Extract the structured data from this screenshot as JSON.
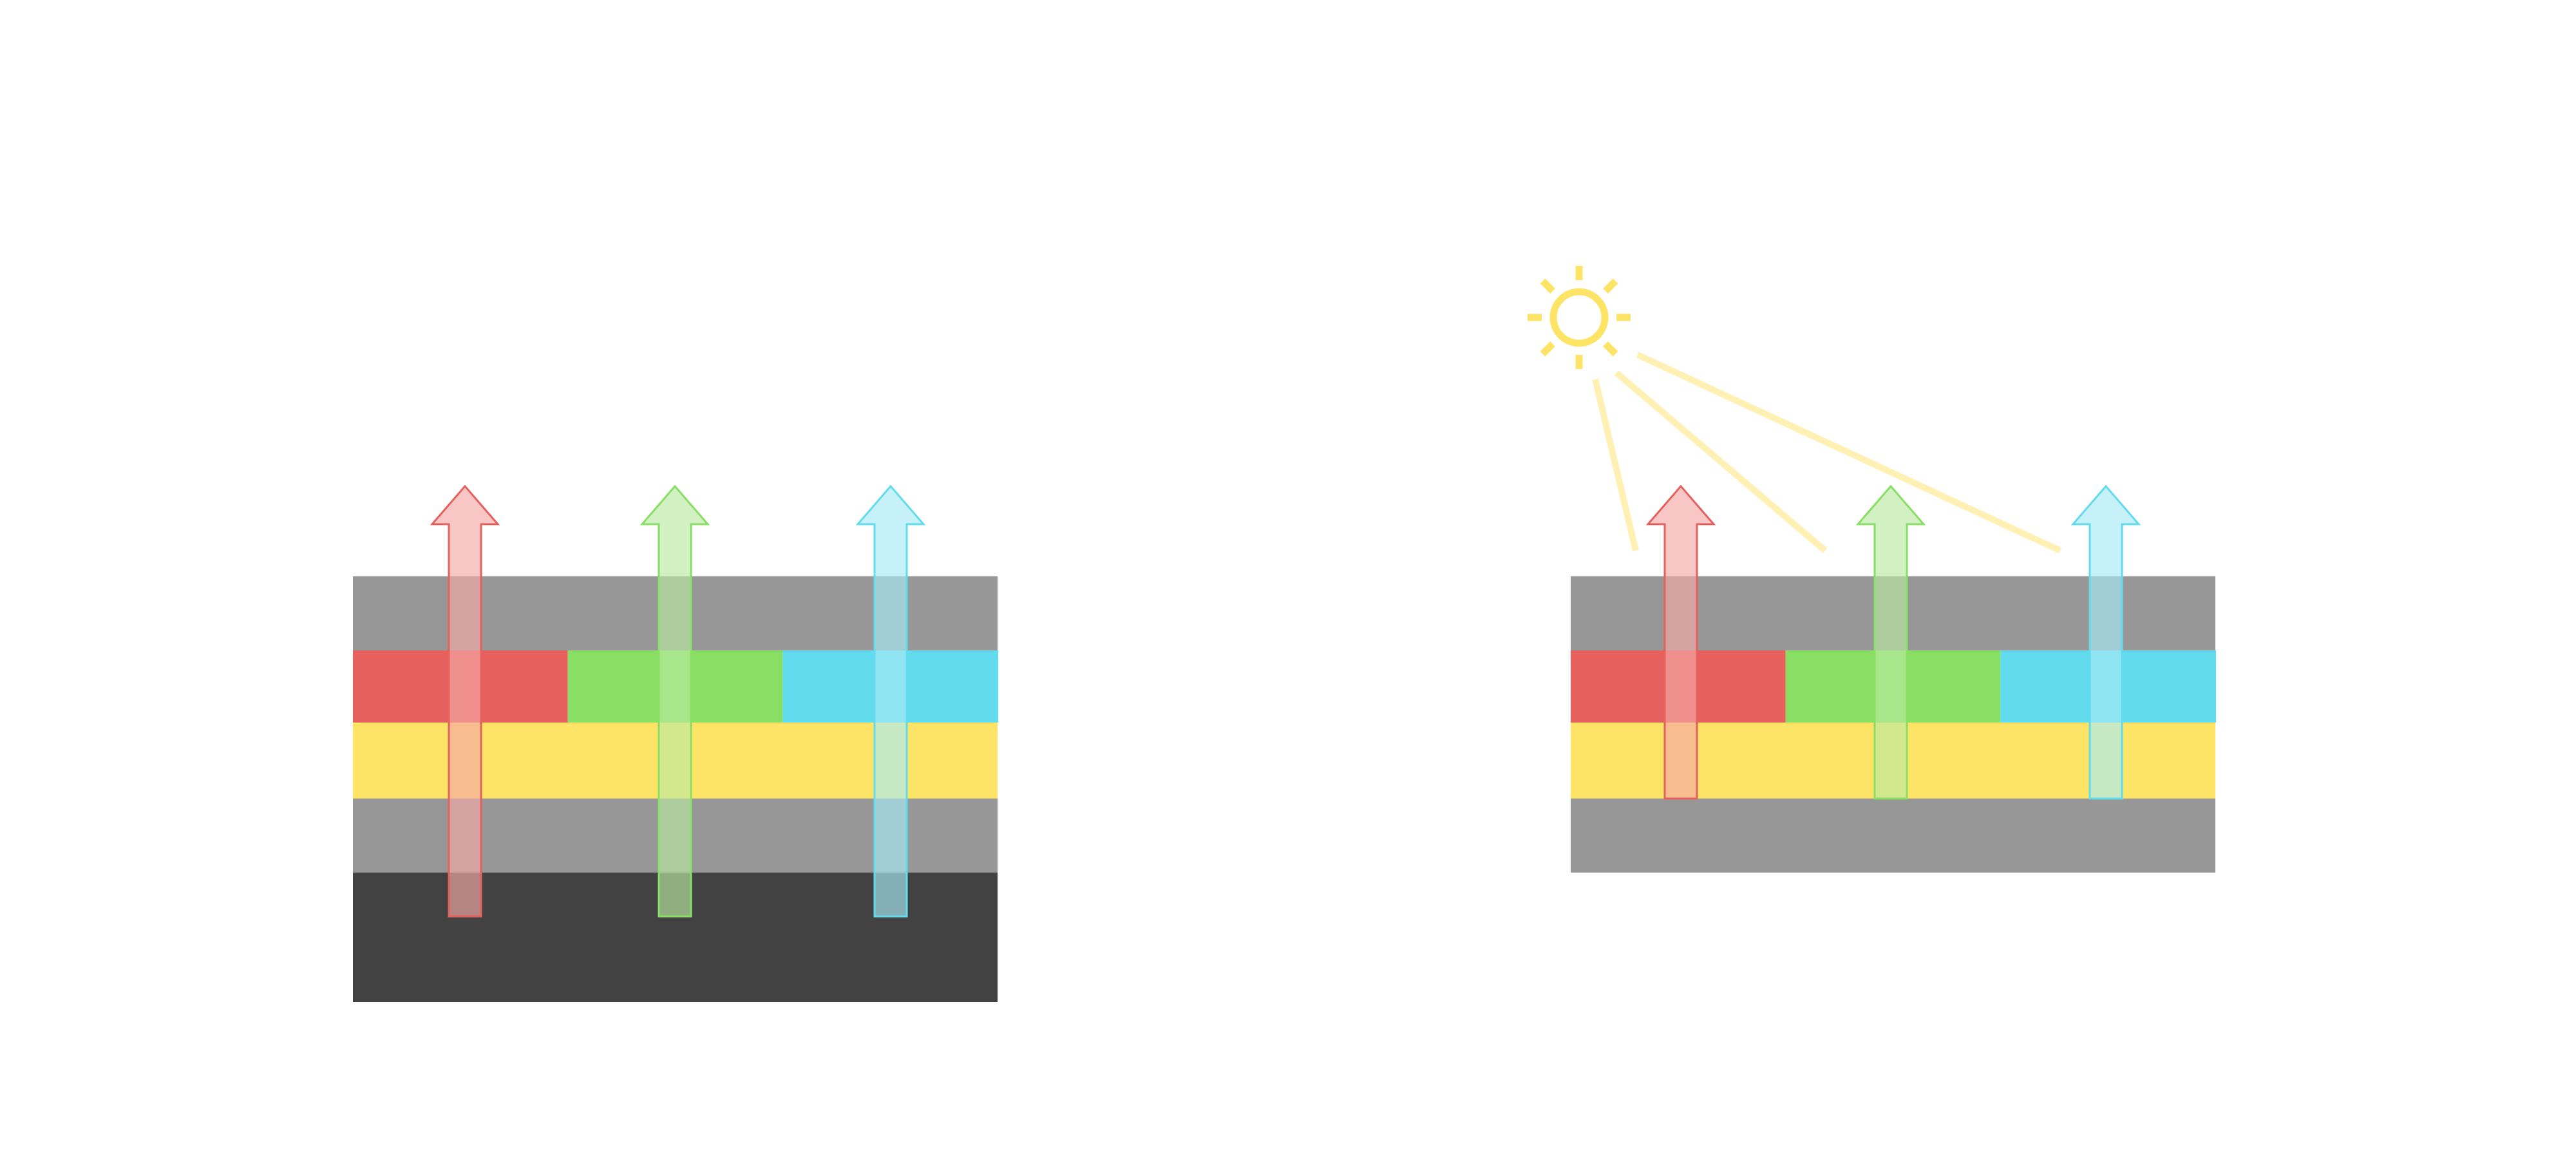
{
  "colors": {
    "background": "#ffffff",
    "gray_layer": "#979797",
    "dark_layer": "#424242",
    "red": "#e6615d",
    "green": "#89de64",
    "cyan": "#62dbee",
    "yellow": "#fee466",
    "light_ray": "#fff0b3",
    "red_arrow_fill": "#f4a7a5",
    "red_arrow_stroke": "#e6615d",
    "green_arrow_fill": "#b9eaa2",
    "green_arrow_stroke": "#89de64",
    "cyan_arrow_fill": "#a8eaf5",
    "cyan_arrow_stroke": "#62dbee"
  },
  "diagrams": [
    {
      "name": "stack-with-backlight",
      "layers": [
        "gray",
        "color-filter",
        "yellow",
        "gray",
        "dark"
      ],
      "has_sun": false
    },
    {
      "name": "stack-with-ambient-light",
      "layers": [
        "gray",
        "color-filter",
        "yellow",
        "gray"
      ],
      "has_sun": true
    }
  ],
  "icons": {
    "sun": "sun-icon",
    "arrow": "arrow-up-icon"
  }
}
